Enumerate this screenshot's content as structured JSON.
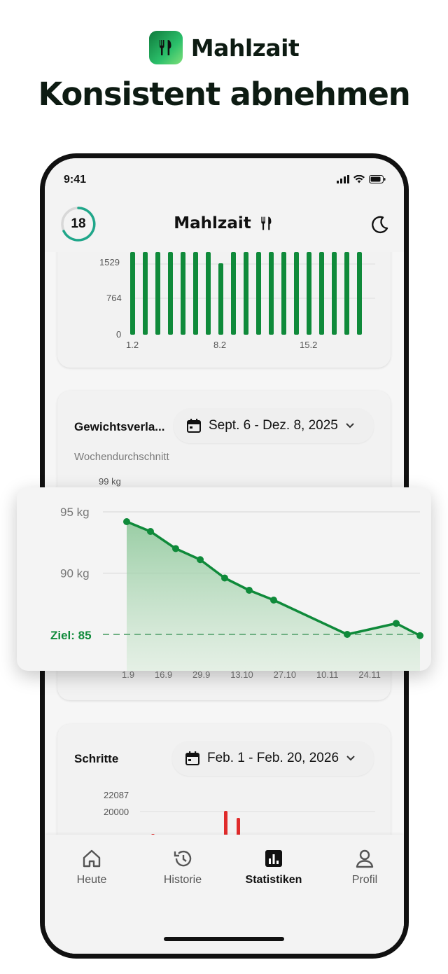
{
  "brand": {
    "name": "Mahlzait"
  },
  "headline": "Konsistent abnehmen",
  "status_bar": {
    "time": "9:41"
  },
  "app_bar": {
    "streak_count": "18",
    "title": "Mahlzait"
  },
  "calories_card": {
    "y_ticks": [
      "1529",
      "764",
      "0"
    ],
    "x_ticks": [
      "1.2",
      "8.2",
      "15.2"
    ],
    "bar_color": "#0f8a3a"
  },
  "weight_card": {
    "title": "Gewichtsverla...",
    "date_range": "Sept. 6 - Dez. 8, 2025",
    "subtitle": "Wochendurchschnitt",
    "y_top_label": "99 kg",
    "x_ticks_partial": [
      "1.9",
      "16.9",
      "29.9",
      "13.10",
      "27.10",
      "10.11",
      "24.11"
    ]
  },
  "steps_card": {
    "title": "Schritte",
    "date_range": "Feb. 1 - Feb. 20, 2026",
    "y_ticks": [
      "22087",
      "20000"
    ],
    "bar_color": "#e02b2b"
  },
  "nav": {
    "items": [
      {
        "label": "Heute",
        "icon": "home-icon"
      },
      {
        "label": "Historie",
        "icon": "history-icon"
      },
      {
        "label": "Statistiken",
        "icon": "stats-icon"
      },
      {
        "label": "Profil",
        "icon": "profile-icon"
      }
    ],
    "active": "Statistiken"
  },
  "chart_data": {
    "type": "area",
    "y_tick_labels": [
      "95 kg",
      "90 kg"
    ],
    "goal_label": "Ziel: 85",
    "goal": 85,
    "ylim": [
      82,
      96
    ],
    "values": [
      94.2,
      93.4,
      92.0,
      91.1,
      89.6,
      88.6,
      87.8,
      85.0,
      85.9,
      84.9
    ],
    "line_color": "#0f8a3a",
    "grid": true
  }
}
